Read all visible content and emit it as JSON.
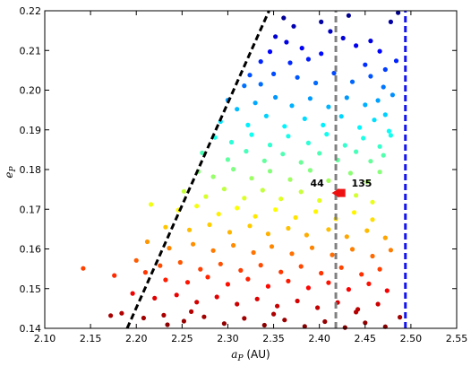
{
  "chart_data": {
    "type": "scatter",
    "title": "",
    "xlabel": "a_P (AU)",
    "ylabel": "e_P",
    "xlabel_parts": {
      "symbol": "a",
      "sub": "P",
      "unit": " (AU)"
    },
    "ylabel_parts": {
      "symbol": "e",
      "sub": "P"
    },
    "xlim": [
      2.1,
      2.55
    ],
    "ylim": [
      0.14,
      0.22
    ],
    "grid": false,
    "legend": "none",
    "x_ticks": [
      2.1,
      2.15,
      2.2,
      2.25,
      2.3,
      2.35,
      2.4,
      2.45,
      2.5,
      2.55
    ],
    "x_tick_labels": [
      "2.10",
      "2.15",
      "2.20",
      "2.25",
      "2.30",
      "2.35",
      "2.40",
      "2.45",
      "2.50",
      "2.55"
    ],
    "y_ticks": [
      0.14,
      0.15,
      0.16,
      0.17,
      0.18,
      0.19,
      0.2,
      0.21,
      0.22
    ],
    "y_tick_labels": [
      "0.14",
      "0.15",
      "0.16",
      "0.17",
      "0.18",
      "0.19",
      "0.20",
      "0.21",
      "0.22"
    ],
    "colormap": "jet (colored by e_P)",
    "colors": {
      "black_boundary": "#000000",
      "gray_line": "#808080",
      "blue_line": "#1515ee",
      "marker": "#ee1111"
    },
    "lines": [
      {
        "name": "black-dashed-boundary",
        "style": "dashed",
        "color": "#000000",
        "points": [
          [
            2.19,
            0.14
          ],
          [
            2.345,
            0.22
          ]
        ]
      },
      {
        "name": "gray-dashed-vertical",
        "style": "dashed",
        "color": "#808080",
        "x": 2.418
      },
      {
        "name": "blue-dashed-vertical",
        "style": "dashed",
        "color": "#1515ee",
        "x": 2.494
      }
    ],
    "highlight": {
      "x": 2.424,
      "y": 0.1741,
      "arrow_from_x": 2.4155
    },
    "annotations": [
      {
        "text": "44",
        "x": 2.405,
        "y": 0.1757
      },
      {
        "text": "135",
        "x": 2.435,
        "y": 0.1757
      }
    ],
    "points": [
      [
        2.361,
        0.2182
      ],
      [
        2.372,
        0.2161
      ],
      [
        2.352,
        0.2135
      ],
      [
        2.364,
        0.2121
      ],
      [
        2.381,
        0.2106
      ],
      [
        2.402,
        0.2172
      ],
      [
        2.412,
        0.2148
      ],
      [
        2.426,
        0.2131
      ],
      [
        2.44,
        0.2112
      ],
      [
        2.456,
        0.2124
      ],
      [
        2.466,
        0.2098
      ],
      [
        2.478,
        0.2172
      ],
      [
        2.486,
        0.2195
      ],
      [
        2.432,
        0.2188
      ],
      [
        2.402,
        0.2092
      ],
      [
        2.388,
        0.2078
      ],
      [
        2.368,
        0.2069
      ],
      [
        2.346,
        0.2097
      ],
      [
        2.336,
        0.2072
      ],
      [
        2.45,
        0.2064
      ],
      [
        2.472,
        0.2052
      ],
      [
        2.484,
        0.2074
      ],
      [
        2.324,
        0.2038
      ],
      [
        2.318,
        0.2011
      ],
      [
        2.336,
        0.2015
      ],
      [
        2.35,
        0.2041
      ],
      [
        2.376,
        0.2032
      ],
      [
        2.396,
        0.2018
      ],
      [
        2.416,
        0.2043
      ],
      [
        2.436,
        0.2021
      ],
      [
        2.456,
        0.2035
      ],
      [
        2.47,
        0.2008
      ],
      [
        2.48,
        0.1988
      ],
      [
        2.3,
        0.1975
      ],
      [
        2.31,
        0.1952
      ],
      [
        2.33,
        0.1968
      ],
      [
        2.352,
        0.1982
      ],
      [
        2.37,
        0.1961
      ],
      [
        2.39,
        0.1979
      ],
      [
        2.41,
        0.1958
      ],
      [
        2.43,
        0.1981
      ],
      [
        2.45,
        0.1963
      ],
      [
        2.464,
        0.1974
      ],
      [
        2.472,
        0.1938
      ],
      [
        2.292,
        0.1921
      ],
      [
        2.322,
        0.1912
      ],
      [
        2.342,
        0.1935
      ],
      [
        2.362,
        0.1909
      ],
      [
        2.384,
        0.1928
      ],
      [
        2.404,
        0.1912
      ],
      [
        2.424,
        0.1934
      ],
      [
        2.444,
        0.1906
      ],
      [
        2.46,
        0.1925
      ],
      [
        2.476,
        0.1897
      ],
      [
        2.286,
        0.1881
      ],
      [
        2.304,
        0.1869
      ],
      [
        2.326,
        0.1888
      ],
      [
        2.346,
        0.1862
      ],
      [
        2.366,
        0.1884
      ],
      [
        2.388,
        0.1867
      ],
      [
        2.408,
        0.1889
      ],
      [
        2.428,
        0.1861
      ],
      [
        2.448,
        0.1879
      ],
      [
        2.466,
        0.1858
      ],
      [
        2.478,
        0.1886
      ],
      [
        2.272,
        0.1842
      ],
      [
        2.3,
        0.1825
      ],
      [
        2.32,
        0.1846
      ],
      [
        2.34,
        0.1822
      ],
      [
        2.36,
        0.1839
      ],
      [
        2.38,
        0.1818
      ],
      [
        2.4,
        0.1841
      ],
      [
        2.42,
        0.1824
      ],
      [
        2.44,
        0.1845
      ],
      [
        2.456,
        0.1821
      ],
      [
        2.47,
        0.1836
      ],
      [
        2.268,
        0.1795
      ],
      [
        2.284,
        0.1782
      ],
      [
        2.306,
        0.1801
      ],
      [
        2.326,
        0.1778
      ],
      [
        2.346,
        0.1796
      ],
      [
        2.368,
        0.1775
      ],
      [
        2.39,
        0.1798
      ],
      [
        2.41,
        0.1772
      ],
      [
        2.434,
        0.1791
      ],
      [
        2.452,
        0.1769
      ],
      [
        2.466,
        0.1794
      ],
      [
        2.252,
        0.1745
      ],
      [
        2.276,
        0.1732
      ],
      [
        2.296,
        0.1751
      ],
      [
        2.318,
        0.1728
      ],
      [
        2.338,
        0.1748
      ],
      [
        2.358,
        0.1726
      ],
      [
        2.38,
        0.1744
      ],
      [
        2.4,
        0.1722
      ],
      [
        2.44,
        0.1735
      ],
      [
        2.458,
        0.1718
      ],
      [
        2.216,
        0.1712
      ],
      [
        2.246,
        0.1698
      ],
      [
        2.266,
        0.1708
      ],
      [
        2.29,
        0.1688
      ],
      [
        2.31,
        0.1703
      ],
      [
        2.33,
        0.1682
      ],
      [
        2.352,
        0.1699
      ],
      [
        2.374,
        0.1679
      ],
      [
        2.396,
        0.1694
      ],
      [
        2.418,
        0.1676
      ],
      [
        2.438,
        0.1692
      ],
      [
        2.458,
        0.1674
      ],
      [
        2.232,
        0.1655
      ],
      [
        2.258,
        0.1648
      ],
      [
        2.28,
        0.1661
      ],
      [
        2.302,
        0.1642
      ],
      [
        2.324,
        0.1658
      ],
      [
        2.344,
        0.1638
      ],
      [
        2.366,
        0.1652
      ],
      [
        2.386,
        0.1635
      ],
      [
        2.41,
        0.1649
      ],
      [
        2.43,
        0.1631
      ],
      [
        2.452,
        0.1646
      ],
      [
        2.472,
        0.1628
      ],
      [
        2.212,
        0.1618
      ],
      [
        2.236,
        0.1602
      ],
      [
        2.262,
        0.1612
      ],
      [
        2.284,
        0.1596
      ],
      [
        2.306,
        0.1609
      ],
      [
        2.328,
        0.1591
      ],
      [
        2.348,
        0.1606
      ],
      [
        2.37,
        0.1588
      ],
      [
        2.392,
        0.1603
      ],
      [
        2.414,
        0.1585
      ],
      [
        2.436,
        0.1599
      ],
      [
        2.458,
        0.1582
      ],
      [
        2.478,
        0.1597
      ],
      [
        2.2,
        0.1571
      ],
      [
        2.226,
        0.1558
      ],
      [
        2.248,
        0.1566
      ],
      [
        2.27,
        0.1549
      ],
      [
        2.292,
        0.1562
      ],
      [
        2.314,
        0.1546
      ],
      [
        2.336,
        0.1559
      ],
      [
        2.358,
        0.1542
      ],
      [
        2.38,
        0.1556
      ],
      [
        2.402,
        0.1539
      ],
      [
        2.424,
        0.1553
      ],
      [
        2.446,
        0.1536
      ],
      [
        2.466,
        0.1549
      ],
      [
        2.142,
        0.1551
      ],
      [
        2.176,
        0.1533
      ],
      [
        2.21,
        0.1541
      ],
      [
        2.232,
        0.1522
      ],
      [
        2.256,
        0.1516
      ],
      [
        2.278,
        0.1529
      ],
      [
        2.3,
        0.1511
      ],
      [
        2.322,
        0.1524
      ],
      [
        2.344,
        0.1506
      ],
      [
        2.366,
        0.1519
      ],
      [
        2.388,
        0.1502
      ],
      [
        2.41,
        0.1515
      ],
      [
        2.432,
        0.1498
      ],
      [
        2.454,
        0.1512
      ],
      [
        2.474,
        0.1495
      ],
      [
        2.196,
        0.1488
      ],
      [
        2.22,
        0.1476
      ],
      [
        2.244,
        0.1484
      ],
      [
        2.266,
        0.1466
      ],
      [
        2.288,
        0.1479
      ],
      [
        2.31,
        0.1461
      ],
      [
        2.332,
        0.1474
      ],
      [
        2.354,
        0.1456
      ],
      [
        2.376,
        0.1469
      ],
      [
        2.398,
        0.1452
      ],
      [
        2.42,
        0.1465
      ],
      [
        2.442,
        0.1448
      ],
      [
        2.464,
        0.1461
      ],
      [
        2.184,
        0.1438
      ],
      [
        2.208,
        0.1426
      ],
      [
        2.23,
        0.1433
      ],
      [
        2.252,
        0.1418
      ],
      [
        2.274,
        0.1429
      ],
      [
        2.296,
        0.1412
      ],
      [
        2.318,
        0.1425
      ],
      [
        2.34,
        0.1408
      ],
      [
        2.362,
        0.1421
      ],
      [
        2.384,
        0.1405
      ],
      [
        2.406,
        0.1417
      ],
      [
        2.428,
        0.1402
      ],
      [
        2.45,
        0.1414
      ],
      [
        2.472,
        0.1404
      ],
      [
        2.488,
        0.1428
      ],
      [
        2.172,
        0.1432
      ],
      [
        2.26,
        0.1442
      ],
      [
        2.35,
        0.1436
      ],
      [
        2.44,
        0.1441
      ],
      [
        2.234,
        0.1409
      ]
    ]
  }
}
